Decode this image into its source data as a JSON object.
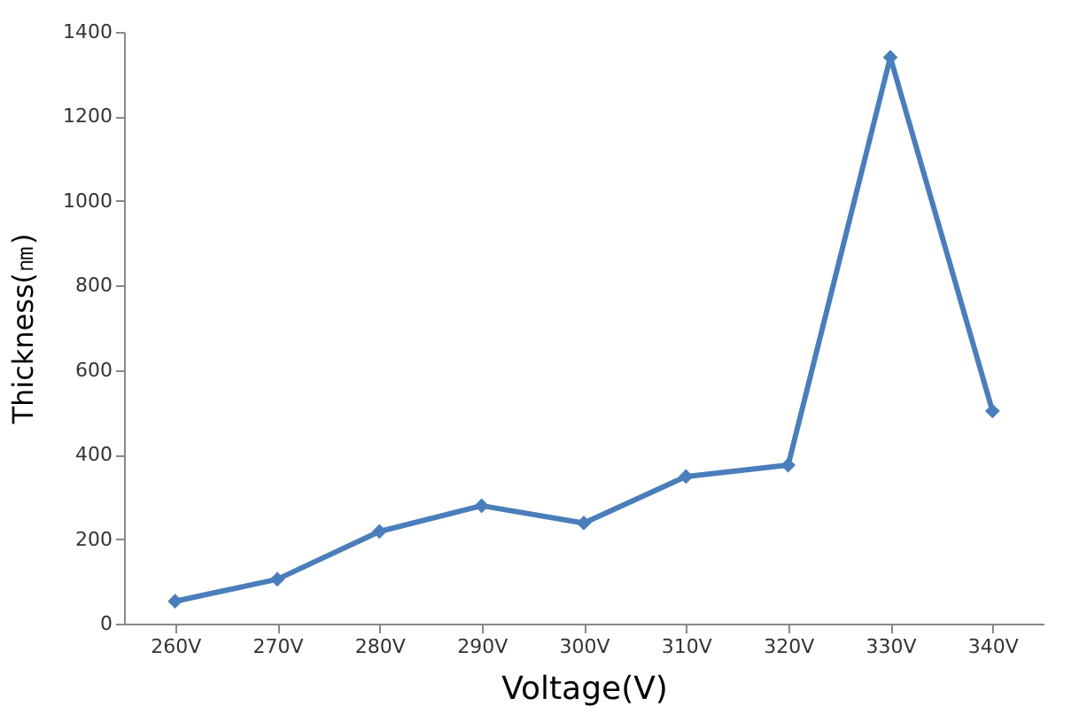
{
  "chart_data": {
    "type": "line",
    "xlabel": "Voltage(V)",
    "ylabel": "Thickness(㎚)",
    "categories": [
      "260V",
      "270V",
      "280V",
      "290V",
      "300V",
      "310V",
      "320V",
      "330V",
      "340V"
    ],
    "series": [
      {
        "color": "#4a7ebb",
        "values": [
          53,
          105,
          218,
          279,
          238,
          348,
          375,
          1340,
          503
        ]
      }
    ],
    "ylim": [
      0,
      1400
    ],
    "yticks": [
      0,
      200,
      400,
      600,
      800,
      1000,
      1200,
      1400
    ],
    "grid": false,
    "marker": "diamond",
    "line_style": "solid"
  }
}
